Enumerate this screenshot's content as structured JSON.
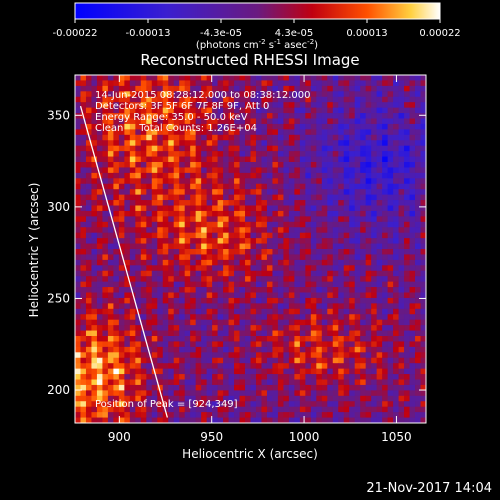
{
  "colorbar": {
    "ticks": [
      "-0.00022",
      "-0.00013",
      "-4.3e-05",
      "4.3e-05",
      "0.00013",
      "0.00022"
    ],
    "units_main": "(photons cm",
    "units_sup1": "-2",
    "units_mid1": " s",
    "units_sup2": "-1",
    "units_mid2": " asec",
    "units_sup3": "-2",
    "units_end": ")"
  },
  "title": "Reconstructed RHESSI Image",
  "annotations": {
    "line1": "14-Jun-2015 08:28:12.000 to 08:38:12.000",
    "line2": "Detectors: 3F 5F 6F 7F 8F 9F, Att 0",
    "line3": "Energy Range: 35.0 - 50.0 keV",
    "line4": "Clean     Total Counts: 1.26E+04",
    "peak": "Position of Peak = [924,349]"
  },
  "footer": {
    "date": "21-Nov-2017 14:04"
  },
  "chart_data": {
    "type": "heatmap",
    "title": "Reconstructed RHESSI Image",
    "xlabel": "Heliocentric X (arcsec)",
    "ylabel": "Heliocentric Y (arcsec)",
    "xlim": [
      876,
      1066
    ],
    "ylim": [
      182,
      372
    ],
    "xticks": [
      900,
      950,
      1000,
      1050
    ],
    "yticks": [
      200,
      250,
      300,
      350
    ],
    "colorbar_range": [
      -0.00022,
      0.00022
    ],
    "peak_position": [
      924,
      349
    ],
    "limb_line": {
      "x": [
        879,
        926
      ],
      "y": [
        355,
        185
      ]
    },
    "colors": {
      "negative": "#2020e0",
      "zero": "#5a2a80",
      "positive": "#ffffff",
      "mid": "#ff3000"
    }
  }
}
